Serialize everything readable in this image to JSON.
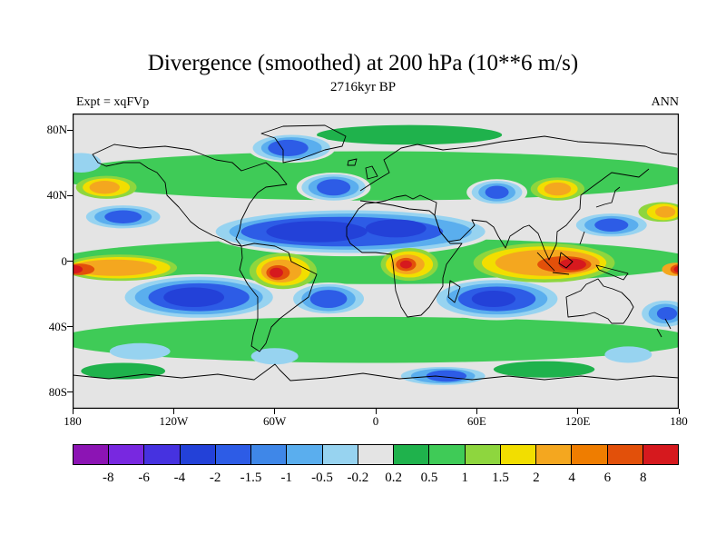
{
  "header": {
    "title": "Divergence (smoothed) at 200 hPa (10**6 m/s)",
    "subtitle": "2716kyr BP",
    "experiment": "Expt = xqFVp",
    "season": "ANN"
  },
  "chart_data": {
    "type": "heatmap",
    "title": "Divergence (smoothed) at 200 hPa (10**6 m/s)",
    "subtitle": "2716kyr BP",
    "experiment_label": "Expt = xqFVp",
    "season_label": "ANN",
    "projection": "equirectangular",
    "lon_range": [
      -180,
      180
    ],
    "lat_range": [
      -90,
      90
    ],
    "units": "10**6 m/s",
    "x_ticks": [
      {
        "label": "180",
        "lon": -180
      },
      {
        "label": "120W",
        "lon": -120
      },
      {
        "label": "60W",
        "lon": -60
      },
      {
        "label": "0",
        "lon": 0
      },
      {
        "label": "60E",
        "lon": 60
      },
      {
        "label": "120E",
        "lon": 120
      },
      {
        "label": "180",
        "lon": 180
      }
    ],
    "y_ticks": [
      {
        "label": "80N",
        "lat": 80
      },
      {
        "label": "40N",
        "lat": 40
      },
      {
        "label": "0",
        "lat": 0
      },
      {
        "label": "40S",
        "lat": -40
      },
      {
        "label": "80S",
        "lat": -80
      }
    ],
    "colorbar": {
      "levels": [
        -8,
        -6,
        -4,
        -2,
        -1.5,
        -1,
        -0.5,
        -0.2,
        0.2,
        0.5,
        1,
        1.5,
        2,
        4,
        6,
        8
      ],
      "labels": [
        "-8",
        "-6",
        "-4",
        "-2",
        "-1.5",
        "-1",
        "-0.5",
        "-0.2",
        "0.2",
        "0.5",
        "1",
        "1.5",
        "2",
        "4",
        "6",
        "8"
      ],
      "colors": [
        "#8c14b4",
        "#7828e0",
        "#4632e0",
        "#2341d8",
        "#2d5ce6",
        "#3f87e8",
        "#5aaeee",
        "#97d3f0",
        "#e4e4e4",
        "#1fb24c",
        "#3fcb57",
        "#8ed63e",
        "#f2de00",
        "#f4a71f",
        "#ef7d00",
        "#e2500a",
        "#d6191e"
      ]
    },
    "field_features": [
      {
        "name": "nh-midlat-green-band",
        "lon": 0,
        "lat": 52,
        "rxd": 190,
        "ryd": 15,
        "v": 0.7
      },
      {
        "name": "arctic-green",
        "lon": 20,
        "lat": 77,
        "rxd": 55,
        "ryd": 6,
        "v": 0.4
      },
      {
        "name": "equatorial-green-band",
        "lon": 0,
        "lat": 0,
        "rxd": 190,
        "ryd": 14,
        "v": 0.7
      },
      {
        "name": "sh-midlat-green-band",
        "lon": 0,
        "lat": -48,
        "rxd": 190,
        "ryd": 14,
        "v": 0.7
      },
      {
        "name": "antarctic-green-west",
        "lon": -150,
        "lat": -67,
        "rxd": 25,
        "ryd": 5,
        "v": 0.4
      },
      {
        "name": "antarctic-green-east",
        "lon": 100,
        "lat": -66,
        "rxd": 30,
        "ryd": 5,
        "v": 0.4
      },
      {
        "name": "n-subtropic-atlantic-sahara",
        "lon": -15,
        "lat": 18,
        "rxd": 85,
        "ryd": 15,
        "v": 0
      },
      {
        "lon": -15,
        "lat": 18,
        "rxd": 80,
        "ryd": 13,
        "v": -0.35
      },
      {
        "lon": -15,
        "lat": 18,
        "rxd": 72,
        "ryd": 11,
        "v": -0.8
      },
      {
        "lon": -20,
        "lat": 18,
        "rxd": 60,
        "ryd": 9,
        "v": -1.7
      },
      {
        "lon": -35,
        "lat": 18,
        "rxd": 30,
        "ryd": 6.5,
        "v": -3
      },
      {
        "lon": 12,
        "lat": 20,
        "rxd": 18,
        "ryd": 5.5,
        "v": -3
      },
      {
        "name": "ne-pacific-subtropic-blue",
        "lon": -150,
        "lat": 27,
        "rxd": 25,
        "ryd": 8,
        "v": 0
      },
      {
        "lon": -150,
        "lat": 27,
        "rxd": 22,
        "ryd": 7,
        "v": -0.35
      },
      {
        "lon": -150,
        "lat": 27,
        "rxd": 17,
        "ryd": 5.5,
        "v": -0.8
      },
      {
        "lon": -150,
        "lat": 27,
        "rxd": 11,
        "ryd": 4,
        "v": -1.7
      },
      {
        "name": "n-atlantic-midlat-blue",
        "lon": -25,
        "lat": 45,
        "rxd": 22,
        "ryd": 9,
        "v": 0
      },
      {
        "lon": -25,
        "lat": 45,
        "rxd": 19,
        "ryd": 8,
        "v": -0.35
      },
      {
        "lon": -25,
        "lat": 45,
        "rxd": 15,
        "ryd": 6.5,
        "v": -0.8
      },
      {
        "lon": -25,
        "lat": 45,
        "rxd": 10,
        "ryd": 5,
        "v": -1.7
      },
      {
        "name": "arctic-canada-blue",
        "lon": -50,
        "lat": 69,
        "rxd": 26,
        "ryd": 9,
        "v": 0
      },
      {
        "lon": -50,
        "lat": 69,
        "rxd": 23,
        "ryd": 8,
        "v": -0.35
      },
      {
        "lon": -50,
        "lat": 69,
        "rxd": 18,
        "ryd": 6.5,
        "v": -0.8
      },
      {
        "lon": -52,
        "lat": 69,
        "rxd": 12,
        "ryd": 5,
        "v": -1.7
      },
      {
        "name": "central-asia-blue",
        "lon": 72,
        "lat": 42,
        "rxd": 18,
        "ryd": 8,
        "v": 0
      },
      {
        "lon": 72,
        "lat": 42,
        "rxd": 15,
        "ryd": 7,
        "v": -0.35
      },
      {
        "lon": 72,
        "lat": 42,
        "rxd": 11,
        "ryd": 5.5,
        "v": -0.8
      },
      {
        "lon": 72,
        "lat": 42,
        "rxd": 7,
        "ryd": 4,
        "v": -1.7
      },
      {
        "name": "nw-pacific-subtropic-blue",
        "lon": 140,
        "lat": 22,
        "rxd": 24,
        "ryd": 8,
        "v": 0
      },
      {
        "lon": 140,
        "lat": 22,
        "rxd": 21,
        "ryd": 7,
        "v": -0.35
      },
      {
        "lon": 140,
        "lat": 22,
        "rxd": 16,
        "ryd": 5.5,
        "v": -0.8
      },
      {
        "lon": 140,
        "lat": 22,
        "rxd": 10,
        "ryd": 4,
        "v": -1.7
      },
      {
        "name": "se-pacific-deep-blue",
        "lon": -105,
        "lat": -22,
        "rxd": 48,
        "ryd": 14,
        "v": 0
      },
      {
        "lon": -105,
        "lat": -22,
        "rxd": 44,
        "ryd": 12.5,
        "v": -0.35
      },
      {
        "lon": -105,
        "lat": -22,
        "rxd": 38,
        "ryd": 10.5,
        "v": -0.8
      },
      {
        "lon": -105,
        "lat": -22,
        "rxd": 30,
        "ryd": 8.5,
        "v": -1.7
      },
      {
        "lon": -108,
        "lat": -22,
        "rxd": 18,
        "ryd": 6,
        "v": -3
      },
      {
        "name": "s-atlantic-blue",
        "lon": -28,
        "lat": -23,
        "rxd": 24,
        "ryd": 10,
        "v": 0
      },
      {
        "lon": -28,
        "lat": -23,
        "rxd": 21,
        "ryd": 9,
        "v": -0.35
      },
      {
        "lon": -28,
        "lat": -23,
        "rxd": 16,
        "ryd": 7.5,
        "v": -0.8
      },
      {
        "lon": -28,
        "lat": -23,
        "rxd": 11,
        "ryd": 5.5,
        "v": -1.7
      },
      {
        "name": "s-indian-deep-blue",
        "lon": 72,
        "lat": -23,
        "rxd": 40,
        "ryd": 13,
        "v": 0
      },
      {
        "lon": 72,
        "lat": -23,
        "rxd": 36,
        "ryd": 11.5,
        "v": -0.35
      },
      {
        "lon": 72,
        "lat": -23,
        "rxd": 30,
        "ryd": 9.5,
        "v": -0.8
      },
      {
        "lon": 72,
        "lat": -23,
        "rxd": 23,
        "ryd": 7.5,
        "v": -1.7
      },
      {
        "lon": 70,
        "lat": -23,
        "rxd": 13,
        "ryd": 5,
        "v": -3
      },
      {
        "name": "antarctic-coast-blue",
        "lon": 40,
        "lat": -70,
        "rxd": 28,
        "ryd": 6.5,
        "v": 0
      },
      {
        "lon": 40,
        "lat": -70,
        "rxd": 25,
        "ryd": 5.5,
        "v": -0.35
      },
      {
        "lon": 40,
        "lat": -70,
        "rxd": 19,
        "ryd": 4.5,
        "v": -0.8
      },
      {
        "lon": 42,
        "lat": -70,
        "rxd": 12,
        "ryd": 3.5,
        "v": -1.7
      },
      {
        "name": "sw-pacific-blue",
        "lon": 172,
        "lat": -32,
        "rxd": 16,
        "ryd": 9,
        "v": 0
      },
      {
        "lon": 172,
        "lat": -32,
        "rxd": 14,
        "ryd": 8,
        "v": -0.35
      },
      {
        "lon": 172,
        "lat": -32,
        "rxd": 10,
        "ryd": 6,
        "v": -0.8
      },
      {
        "lon": 173,
        "lat": -32,
        "rxd": 6,
        "ryd": 4,
        "v": -1.7
      },
      {
        "name": "southern-ocean-cyan-1",
        "lon": -140,
        "lat": -55,
        "rxd": 18,
        "ryd": 5,
        "v": -0.35
      },
      {
        "name": "southern-ocean-cyan-2",
        "lon": -60,
        "lat": -58,
        "rxd": 14,
        "ryd": 5,
        "v": -0.35
      },
      {
        "name": "southern-ocean-cyan-3",
        "lon": 150,
        "lat": -57,
        "rxd": 14,
        "ryd": 5,
        "v": -0.35
      },
      {
        "name": "bering-cyan",
        "lon": -175,
        "lat": 60,
        "rxd": 12,
        "ryd": 6,
        "v": -0.35
      },
      {
        "name": "eq-pacific-divergence",
        "lon": -152,
        "lat": -4,
        "rxd": 34,
        "ryd": 8,
        "v": 1.2
      },
      {
        "lon": -152,
        "lat": -4,
        "rxd": 30,
        "ryd": 6.5,
        "v": 1.7
      },
      {
        "lon": -155,
        "lat": -4,
        "rxd": 25,
        "ryd": 5,
        "v": 3
      },
      {
        "lon": -176,
        "lat": -5,
        "rxd": 9,
        "ryd": 3.5,
        "v": 7
      },
      {
        "lon": -179,
        "lat": -5,
        "rxd": 5,
        "ryd": 2.5,
        "v": 9
      },
      {
        "lon": 178,
        "lat": -5,
        "rxd": 8,
        "ryd": 4,
        "v": 3
      },
      {
        "lon": 180,
        "lat": -5,
        "rxd": 5,
        "ryd": 3,
        "v": 7
      },
      {
        "lon": 180,
        "lat": -5,
        "rxd": 3,
        "ryd": 2,
        "v": 9
      },
      {
        "name": "amazon-divergence",
        "lon": -55,
        "lat": -6,
        "rxd": 20,
        "ryd": 11,
        "v": 1.2
      },
      {
        "lon": -55,
        "lat": -6,
        "rxd": 16,
        "ryd": 9,
        "v": 1.7
      },
      {
        "lon": -56,
        "lat": -6,
        "rxd": 12,
        "ryd": 7,
        "v": 3
      },
      {
        "lon": -58,
        "lat": -7,
        "rxd": 7,
        "ryd": 4.5,
        "v": 7
      },
      {
        "lon": -59,
        "lat": -7,
        "rxd": 4,
        "ryd": 3,
        "v": 9
      },
      {
        "name": "congo-divergence",
        "lon": 20,
        "lat": -2,
        "rxd": 17,
        "ryd": 10,
        "v": 1.2
      },
      {
        "lon": 20,
        "lat": -2,
        "rxd": 14,
        "ryd": 8,
        "v": 1.7
      },
      {
        "lon": 19,
        "lat": -2,
        "rxd": 10,
        "ryd": 6,
        "v": 3
      },
      {
        "lon": 18,
        "lat": -2,
        "rxd": 6,
        "ryd": 4,
        "v": 7
      },
      {
        "lon": 18,
        "lat": -2,
        "rxd": 3.5,
        "ryd": 2.5,
        "v": 9
      },
      {
        "name": "maritime-continent-divergence",
        "lon": 100,
        "lat": -1,
        "rxd": 42,
        "ryd": 12,
        "v": 1.2
      },
      {
        "lon": 100,
        "lat": -1,
        "rxd": 37,
        "ryd": 10,
        "v": 1.7
      },
      {
        "lon": 102,
        "lat": -1,
        "rxd": 31,
        "ryd": 8,
        "v": 3
      },
      {
        "lon": 112,
        "lat": -2,
        "rxd": 16,
        "ryd": 5,
        "v": 7
      },
      {
        "lon": 117,
        "lat": -2,
        "rxd": 8,
        "ryd": 3.5,
        "v": 9
      },
      {
        "name": "ne-pacific-midlat-orange",
        "lon": -160,
        "lat": 45,
        "rxd": 18,
        "ryd": 7,
        "v": 1.2
      },
      {
        "lon": -160,
        "lat": 45,
        "rxd": 14,
        "ryd": 5.5,
        "v": 1.7
      },
      {
        "lon": -161,
        "lat": 45,
        "rxd": 9,
        "ryd": 4,
        "v": 3
      },
      {
        "name": "east-asia-orange",
        "lon": 108,
        "lat": 44,
        "rxd": 16,
        "ryd": 7,
        "v": 1.2
      },
      {
        "lon": 108,
        "lat": 44,
        "rxd": 12,
        "ryd": 5.5,
        "v": 1.7
      },
      {
        "lon": 108,
        "lat": 44,
        "rxd": 8,
        "ryd": 4,
        "v": 3
      },
      {
        "name": "nw-pacific-edge-orange",
        "lon": 170,
        "lat": 30,
        "rxd": 14,
        "ryd": 6,
        "v": 1.2
      },
      {
        "lon": 171,
        "lat": 30,
        "rxd": 10,
        "ryd": 5,
        "v": 1.7
      },
      {
        "lon": 172,
        "lat": 30,
        "rxd": 6,
        "ryd": 3.5,
        "v": 3
      }
    ]
  }
}
